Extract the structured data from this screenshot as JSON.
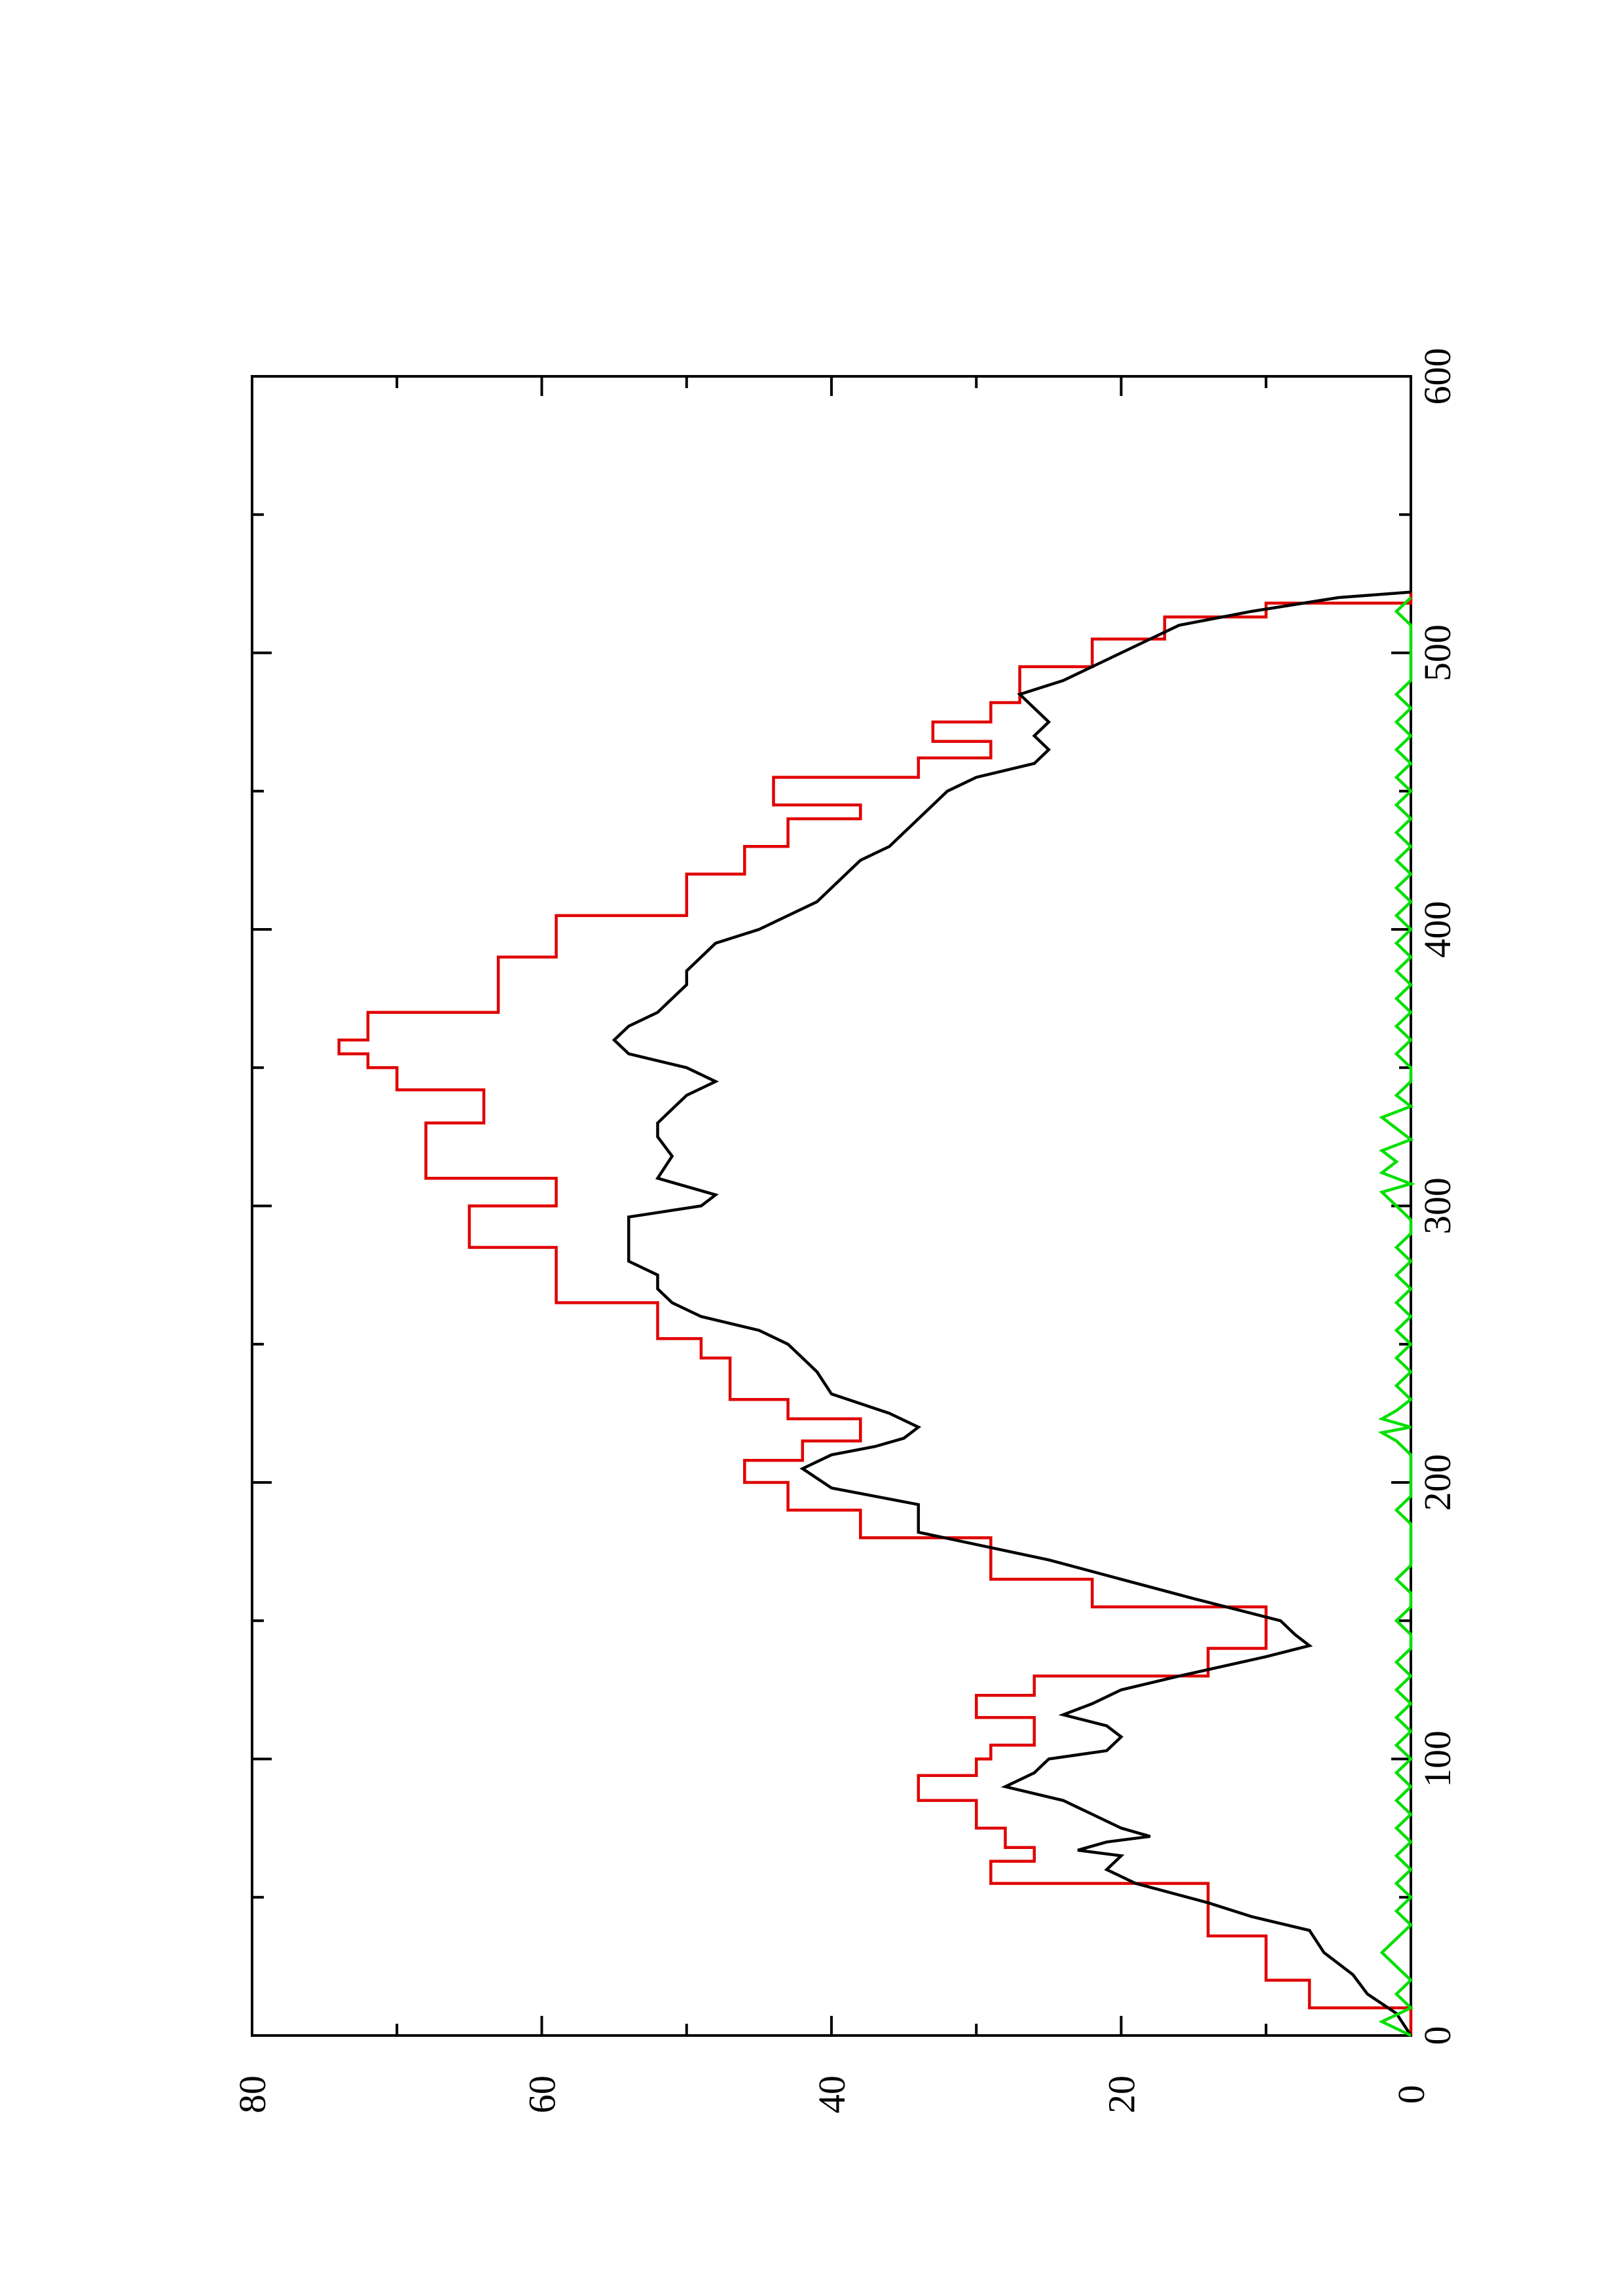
{
  "chart_data": {
    "type": "line",
    "orientation": "rotated 90° counter-clockwise (x axis runs vertically, y axis horizontally)",
    "title": "",
    "xlabel": "",
    "ylabel": "",
    "xlim": [
      0,
      600
    ],
    "ylim": [
      0,
      80
    ],
    "x_ticks": [
      0,
      100,
      200,
      300,
      400,
      500,
      600
    ],
    "x_tick_labels": [
      "0",
      "100",
      "200",
      "300",
      "400",
      "500",
      "600"
    ],
    "y_ticks": [
      0,
      20,
      40,
      60,
      80
    ],
    "y_tick_labels": [
      "0",
      "20",
      "40",
      "60",
      "80"
    ],
    "grid": false,
    "series": [
      {
        "color": "#e00000",
        "style": "step",
        "points": [
          [
            0,
            0
          ],
          [
            10,
            0
          ],
          [
            10,
            7
          ],
          [
            20,
            7
          ],
          [
            20,
            10
          ],
          [
            36,
            10
          ],
          [
            36,
            14
          ],
          [
            55,
            14
          ],
          [
            55,
            29
          ],
          [
            63,
            29
          ],
          [
            63,
            26
          ],
          [
            68,
            26
          ],
          [
            68,
            28
          ],
          [
            75,
            28
          ],
          [
            75,
            30
          ],
          [
            85,
            30
          ],
          [
            85,
            34
          ],
          [
            94,
            34
          ],
          [
            94,
            30
          ],
          [
            100,
            30
          ],
          [
            100,
            29
          ],
          [
            105,
            29
          ],
          [
            105,
            26
          ],
          [
            115,
            26
          ],
          [
            115,
            30
          ],
          [
            123,
            30
          ],
          [
            123,
            26
          ],
          [
            130,
            26
          ],
          [
            130,
            14
          ],
          [
            140,
            14
          ],
          [
            140,
            10
          ],
          [
            155,
            10
          ],
          [
            155,
            22
          ],
          [
            165,
            22
          ],
          [
            165,
            29
          ],
          [
            180,
            29
          ],
          [
            180,
            38
          ],
          [
            190,
            38
          ],
          [
            190,
            43
          ],
          [
            200,
            43
          ],
          [
            200,
            46
          ],
          [
            208,
            46
          ],
          [
            208,
            42
          ],
          [
            215,
            42
          ],
          [
            215,
            38
          ],
          [
            223,
            38
          ],
          [
            223,
            43
          ],
          [
            230,
            43
          ],
          [
            230,
            47
          ],
          [
            245,
            47
          ],
          [
            245,
            49
          ],
          [
            252,
            49
          ],
          [
            252,
            52
          ],
          [
            265,
            52
          ],
          [
            265,
            59
          ],
          [
            285,
            59
          ],
          [
            285,
            65
          ],
          [
            300,
            65
          ],
          [
            300,
            59
          ],
          [
            310,
            59
          ],
          [
            310,
            68
          ],
          [
            330,
            68
          ],
          [
            330,
            64
          ],
          [
            342,
            64
          ],
          [
            342,
            70
          ],
          [
            350,
            70
          ],
          [
            350,
            72
          ],
          [
            355,
            72
          ],
          [
            355,
            74
          ],
          [
            360,
            74
          ],
          [
            360,
            72
          ],
          [
            370,
            72
          ],
          [
            370,
            63
          ],
          [
            390,
            63
          ],
          [
            390,
            59
          ],
          [
            405,
            59
          ],
          [
            405,
            50
          ],
          [
            420,
            50
          ],
          [
            420,
            46
          ],
          [
            430,
            46
          ],
          [
            430,
            43
          ],
          [
            440,
            43
          ],
          [
            440,
            38
          ],
          [
            445,
            38
          ],
          [
            445,
            44
          ],
          [
            455,
            44
          ],
          [
            455,
            34
          ],
          [
            462,
            34
          ],
          [
            462,
            29
          ],
          [
            468,
            29
          ],
          [
            468,
            33
          ],
          [
            475,
            33
          ],
          [
            475,
            29
          ],
          [
            482,
            29
          ],
          [
            482,
            27
          ],
          [
            495,
            27
          ],
          [
            495,
            22
          ],
          [
            505,
            22
          ],
          [
            505,
            17
          ],
          [
            513,
            17
          ],
          [
            513,
            10
          ],
          [
            518,
            10
          ],
          [
            518,
            0
          ],
          [
            522,
            0
          ]
        ]
      },
      {
        "color": "#000000",
        "style": "line",
        "points": [
          [
            0,
            0
          ],
          [
            8,
            1
          ],
          [
            15,
            3
          ],
          [
            22,
            4
          ],
          [
            30,
            6
          ],
          [
            38,
            7
          ],
          [
            43,
            11
          ],
          [
            48,
            14
          ],
          [
            55,
            19
          ],
          [
            60,
            21
          ],
          [
            65,
            20
          ],
          [
            67,
            23
          ],
          [
            70,
            21
          ],
          [
            72,
            18
          ],
          [
            75,
            20
          ],
          [
            80,
            22
          ],
          [
            85,
            24
          ],
          [
            90,
            28
          ],
          [
            95,
            26
          ],
          [
            100,
            25
          ],
          [
            103,
            21
          ],
          [
            108,
            20
          ],
          [
            112,
            21
          ],
          [
            116,
            24
          ],
          [
            120,
            22
          ],
          [
            125,
            20
          ],
          [
            130,
            16
          ],
          [
            137,
            10
          ],
          [
            141,
            7
          ],
          [
            145,
            8
          ],
          [
            150,
            9
          ],
          [
            158,
            15
          ],
          [
            165,
            20
          ],
          [
            172,
            25
          ],
          [
            182,
            34
          ],
          [
            192,
            34
          ],
          [
            198,
            40
          ],
          [
            205,
            42
          ],
          [
            210,
            40
          ],
          [
            213,
            37
          ],
          [
            216,
            35
          ],
          [
            220,
            34
          ],
          [
            225,
            36
          ],
          [
            232,
            40
          ],
          [
            240,
            41
          ],
          [
            245,
            42
          ],
          [
            250,
            43
          ],
          [
            255,
            45
          ],
          [
            260,
            49
          ],
          [
            265,
            51
          ],
          [
            270,
            52
          ],
          [
            275,
            52
          ],
          [
            280,
            54
          ],
          [
            290,
            54
          ],
          [
            296,
            54
          ],
          [
            300,
            49
          ],
          [
            304,
            48
          ],
          [
            310,
            52
          ],
          [
            318,
            51
          ],
          [
            325,
            52
          ],
          [
            330,
            52
          ],
          [
            335,
            51
          ],
          [
            340,
            50
          ],
          [
            345,
            48
          ],
          [
            350,
            50
          ],
          [
            355,
            54
          ],
          [
            360,
            55
          ],
          [
            365,
            54
          ],
          [
            370,
            52
          ],
          [
            375,
            51
          ],
          [
            380,
            50
          ],
          [
            385,
            50
          ],
          [
            390,
            49
          ],
          [
            395,
            48
          ],
          [
            400,
            45
          ],
          [
            405,
            43
          ],
          [
            410,
            41
          ],
          [
            415,
            40
          ],
          [
            420,
            39
          ],
          [
            425,
            38
          ],
          [
            430,
            36
          ],
          [
            435,
            35
          ],
          [
            440,
            34
          ],
          [
            445,
            33
          ],
          [
            450,
            32
          ],
          [
            455,
            30
          ],
          [
            460,
            26
          ],
          [
            465,
            25
          ],
          [
            470,
            26
          ],
          [
            475,
            25
          ],
          [
            480,
            26
          ],
          [
            485,
            27
          ],
          [
            490,
            24
          ],
          [
            495,
            22
          ],
          [
            500,
            20
          ],
          [
            505,
            18
          ],
          [
            510,
            16
          ],
          [
            515,
            11
          ],
          [
            520,
            5
          ],
          [
            522,
            0
          ]
        ]
      },
      {
        "color": "#00e000",
        "style": "line",
        "points": [
          [
            0,
            0
          ],
          [
            5,
            2
          ],
          [
            10,
            0
          ],
          [
            15,
            1
          ],
          [
            20,
            0
          ],
          [
            25,
            1
          ],
          [
            30,
            2
          ],
          [
            35,
            1
          ],
          [
            40,
            0
          ],
          [
            45,
            1
          ],
          [
            50,
            0
          ],
          [
            55,
            1
          ],
          [
            60,
            0
          ],
          [
            65,
            1
          ],
          [
            70,
            0
          ],
          [
            75,
            1
          ],
          [
            80,
            0
          ],
          [
            85,
            1
          ],
          [
            90,
            0
          ],
          [
            95,
            1
          ],
          [
            100,
            0
          ],
          [
            105,
            1
          ],
          [
            110,
            0
          ],
          [
            115,
            1
          ],
          [
            120,
            0
          ],
          [
            125,
            1
          ],
          [
            130,
            0
          ],
          [
            135,
            1
          ],
          [
            140,
            0
          ],
          [
            145,
            0
          ],
          [
            150,
            1
          ],
          [
            155,
            0
          ],
          [
            160,
            0
          ],
          [
            165,
            1
          ],
          [
            170,
            0
          ],
          [
            175,
            0
          ],
          [
            180,
            0
          ],
          [
            185,
            0
          ],
          [
            190,
            1
          ],
          [
            195,
            0
          ],
          [
            200,
            0
          ],
          [
            205,
            0
          ],
          [
            210,
            0
          ],
          [
            215,
            1
          ],
          [
            218,
            2
          ],
          [
            220,
            0
          ],
          [
            223,
            2
          ],
          [
            226,
            1
          ],
          [
            230,
            0
          ],
          [
            235,
            1
          ],
          [
            240,
            0
          ],
          [
            245,
            1
          ],
          [
            250,
            0
          ],
          [
            255,
            1
          ],
          [
            260,
            0
          ],
          [
            265,
            1
          ],
          [
            270,
            0
          ],
          [
            275,
            1
          ],
          [
            280,
            0
          ],
          [
            285,
            1
          ],
          [
            290,
            0
          ],
          [
            295,
            0
          ],
          [
            300,
            1
          ],
          [
            305,
            2
          ],
          [
            308,
            0
          ],
          [
            312,
            2
          ],
          [
            316,
            1
          ],
          [
            320,
            2
          ],
          [
            324,
            0
          ],
          [
            328,
            1
          ],
          [
            332,
            2
          ],
          [
            336,
            0
          ],
          [
            340,
            1
          ],
          [
            345,
            0
          ],
          [
            350,
            0
          ],
          [
            355,
            1
          ],
          [
            360,
            0
          ],
          [
            365,
            1
          ],
          [
            370,
            0
          ],
          [
            375,
            1
          ],
          [
            380,
            0
          ],
          [
            385,
            1
          ],
          [
            390,
            0
          ],
          [
            395,
            1
          ],
          [
            400,
            0
          ],
          [
            405,
            1
          ],
          [
            410,
            0
          ],
          [
            415,
            1
          ],
          [
            420,
            0
          ],
          [
            425,
            1
          ],
          [
            430,
            0
          ],
          [
            435,
            1
          ],
          [
            440,
            0
          ],
          [
            445,
            1
          ],
          [
            450,
            0
          ],
          [
            455,
            1
          ],
          [
            460,
            0
          ],
          [
            465,
            1
          ],
          [
            470,
            0
          ],
          [
            475,
            1
          ],
          [
            480,
            0
          ],
          [
            485,
            1
          ],
          [
            490,
            0
          ],
          [
            495,
            0
          ],
          [
            500,
            0
          ],
          [
            505,
            0
          ],
          [
            510,
            0
          ],
          [
            515,
            1
          ],
          [
            520,
            0
          ]
        ]
      }
    ]
  }
}
